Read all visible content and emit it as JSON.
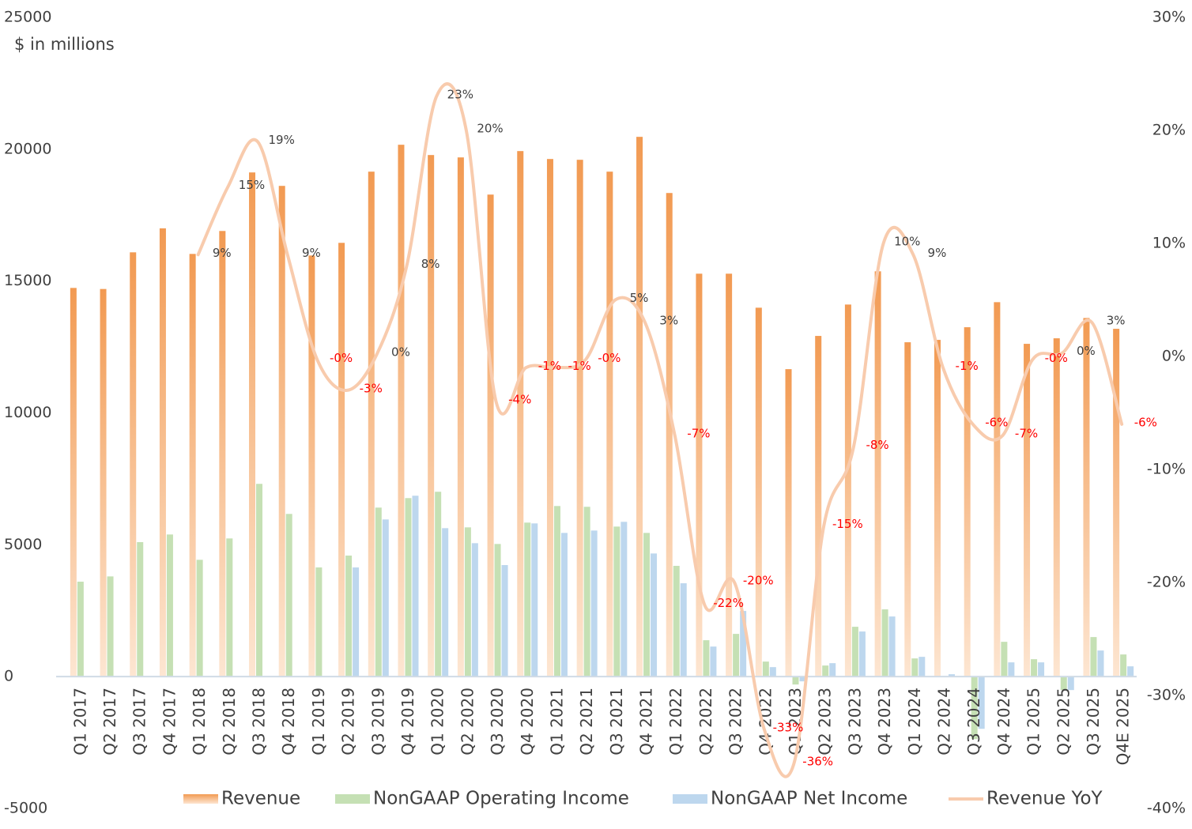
{
  "chart_data": {
    "type": "bar",
    "y_label": "$ in millions",
    "categories": [
      "Q1 2017",
      "Q2 2017",
      "Q3 2017",
      "Q4 2017",
      "Q1 2018",
      "Q2 2018",
      "Q3 2018",
      "Q4 2018",
      "Q1 2019",
      "Q2 2019",
      "Q3 2019",
      "Q4 2019",
      "Q1 2020",
      "Q2 2020",
      "Q3 2020",
      "Q4 2020",
      "Q1 2021",
      "Q2 2021",
      "Q3 2021",
      "Q4 2021",
      "Q1 2022",
      "Q2 2022",
      "Q3 2022",
      "Q4 2022",
      "Q1 2023",
      "Q2 2023",
      "Q3 2023",
      "Q4 2023",
      "Q1 2024",
      "Q2 2024",
      "Q3 2024",
      "Q4 2024",
      "Q1 2025",
      "Q2 2025",
      "Q3 2025",
      "Q4E 2025"
    ],
    "series": [
      {
        "name": "Revenue",
        "type": "bar",
        "color": "#f29a52",
        "values": [
          14740,
          14700,
          16090,
          17000,
          16030,
          16900,
          19120,
          18610,
          15970,
          16450,
          19150,
          20170,
          19780,
          19690,
          18280,
          19930,
          19630,
          19600,
          19150,
          20470,
          18340,
          15280,
          15280,
          13990,
          11660,
          12920,
          14110,
          15370,
          12680,
          12770,
          13250,
          14200,
          12620,
          12830,
          13600,
          13190
        ]
      },
      {
        "name": "NonGAAP Operating Income",
        "type": "bar",
        "color": "#c5e0b4",
        "values": [
          3600,
          3800,
          5100,
          5390,
          4430,
          5240,
          7310,
          6170,
          4140,
          4590,
          6410,
          6770,
          7010,
          5660,
          5030,
          5840,
          6470,
          6440,
          5690,
          5450,
          4200,
          1380,
          1620,
          570,
          -300,
          420,
          1890,
          2550,
          690,
          20,
          -2370,
          1320,
          660,
          -510,
          1500,
          840
        ]
      },
      {
        "name": "NonGAAP Net Income",
        "type": "bar",
        "color": "#bdd7ee",
        "values": [
          null,
          null,
          null,
          null,
          null,
          null,
          null,
          null,
          null,
          4140,
          5960,
          6860,
          5630,
          5060,
          4230,
          5810,
          5450,
          5540,
          5870,
          4670,
          3540,
          1140,
          2490,
          360,
          -180,
          510,
          1710,
          2280,
          750,
          90,
          -1980,
          540,
          540,
          -510,
          990,
          390
        ]
      },
      {
        "name": "Revenue YoY",
        "type": "line",
        "axis": "y2",
        "color": "#f8cbad",
        "values": [
          null,
          null,
          null,
          null,
          9,
          15,
          19,
          9,
          -0.3,
          -3,
          0.2,
          8,
          23,
          20,
          -4,
          -1,
          -1,
          -0.3,
          5,
          3,
          -7,
          -22,
          -20,
          -33,
          -36,
          -15,
          -8,
          10,
          9,
          -1,
          -6,
          -7,
          -0.3,
          0.3,
          3,
          -6
        ],
        "value_labels": [
          null,
          null,
          null,
          null,
          "9%",
          "15%",
          "19%",
          "9%",
          "-0%",
          "-3%",
          "0%",
          "8%",
          "23%",
          "20%",
          "-4%",
          "-1%",
          "-1%",
          "-0%",
          "5%",
          "3%",
          "-7%",
          "-22%",
          "-20%",
          "-33%",
          "-36%",
          "-15%",
          "-8%",
          "10%",
          "9%",
          "-1%",
          "-6%",
          "-7%",
          "-0%",
          "0%",
          "3%",
          "-6%"
        ]
      }
    ],
    "label_colors": {
      "positive": "#404040",
      "negative": "#ff0000"
    },
    "ylim": [
      -5000,
      25000
    ],
    "yticks": [
      -5000,
      0,
      5000,
      10000,
      15000,
      20000,
      25000
    ],
    "y2lim": [
      -40,
      30
    ],
    "y2ticks": [
      {
        "value": -40,
        "label": "-40%"
      },
      {
        "value": -30,
        "label": "-30%"
      },
      {
        "value": -20,
        "label": "-20%"
      },
      {
        "value": -10,
        "label": "-10%"
      },
      {
        "value": 0,
        "label": "0%"
      },
      {
        "value": 10,
        "label": "10%"
      },
      {
        "value": 20,
        "label": "20%"
      },
      {
        "value": 30,
        "label": "30%"
      }
    ],
    "grid": false,
    "legend": "bottom"
  }
}
